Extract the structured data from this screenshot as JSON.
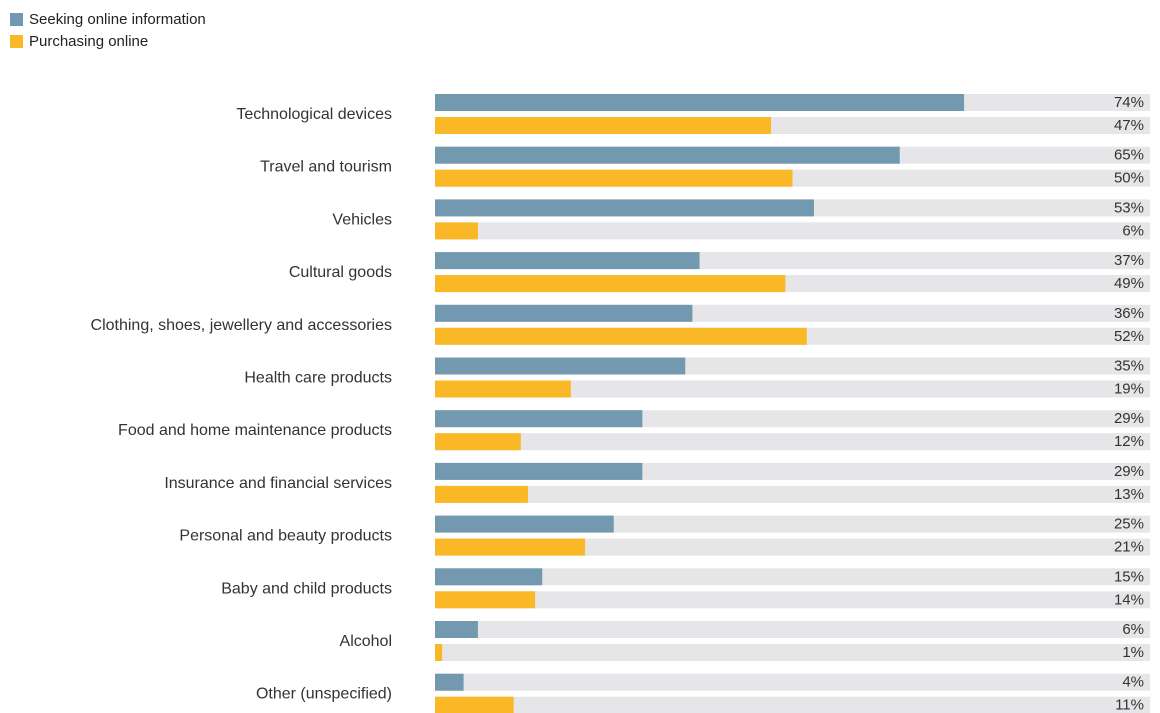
{
  "legend": {
    "items": [
      {
        "label": "Seeking online information",
        "color": "#7399B0"
      },
      {
        "label": "Purchasing online",
        "color": "#FBB826"
      }
    ]
  },
  "colors": {
    "track": "#E6E6E8"
  },
  "chart_data": {
    "type": "bar",
    "orientation": "horizontal",
    "categories": [
      "Technological devices",
      "Travel and tourism",
      "Vehicles",
      "Cultural goods",
      "Clothing, shoes, jewellery and accessories",
      "Health care products",
      "Food and home maintenance products",
      "Insurance and financial services",
      "Personal and beauty products",
      "Baby and child products",
      "Alcohol",
      "Other (unspecified)"
    ],
    "series": [
      {
        "name": "Seeking online information",
        "values": [
          74,
          65,
          53,
          37,
          36,
          35,
          29,
          29,
          25,
          15,
          6,
          4
        ]
      },
      {
        "name": "Purchasing online",
        "values": [
          47,
          50,
          6,
          49,
          52,
          19,
          12,
          13,
          21,
          14,
          1,
          11
        ]
      }
    ],
    "value_suffix": "%",
    "xlim": [
      0,
      100
    ],
    "legend_position": "top-left",
    "grid": false
  }
}
